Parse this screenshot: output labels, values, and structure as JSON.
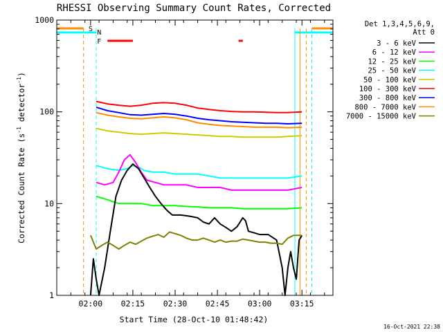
{
  "chart_data": {
    "type": "line",
    "title": "RHESSI Observing Summary Count Rates, Corrected",
    "xlabel": "Start Time (28-Oct-10 01:48:42)",
    "ylabel_main": "Corrected Count Rate (s",
    "ylabel_sup1": "-1",
    "ylabel_mid": " detector",
    "ylabel_sup2": "-1",
    "ylabel_end": ")",
    "footer": "16-Oct-2021 22:38",
    "y_scale": "log",
    "ylim": [
      1,
      1000
    ],
    "xlim_minutes_after_0148": [
      0,
      98
    ],
    "x_ticks": [
      {
        "label": "02:00",
        "minutes": 12
      },
      {
        "label": "02:15",
        "minutes": 27
      },
      {
        "label": "02:30",
        "minutes": 42
      },
      {
        "label": "02:45",
        "minutes": 57
      },
      {
        "label": "03:00",
        "minutes": 72
      },
      {
        "label": "03:15",
        "minutes": 87
      }
    ],
    "y_ticks": [
      {
        "label": "1",
        "value": 1
      },
      {
        "label": "10",
        "value": 10
      },
      {
        "label": "100",
        "value": 100
      },
      {
        "label": "1000",
        "value": 1000
      }
    ],
    "legend": {
      "placement": "right",
      "header1": "Det 1,3,4,5,6,9,",
      "header2": "Att 0",
      "entries": [
        {
          "label": "3 - 6 keV",
          "color": "#000000"
        },
        {
          "label": "6 - 12 keV",
          "color": "#ff00ff"
        },
        {
          "label": "12 - 25 keV",
          "color": "#00ff00"
        },
        {
          "label": "25 - 50 keV",
          "color": "#00ffff"
        },
        {
          "label": "50 - 100 keV",
          "color": "#cccc00"
        },
        {
          "label": "100 - 300 keV",
          "color": "#ff0000"
        },
        {
          "label": "300 - 800 keV",
          "color": "#0000ff"
        },
        {
          "label": "800 - 7000 keV",
          "color": "#ff8c00"
        },
        {
          "label": "7000 - 15000 keV",
          "color": "#808000"
        }
      ]
    },
    "flags": [
      {
        "label": "S",
        "color": "#ff8c00"
      },
      {
        "label": "N",
        "color": "#00ffff"
      },
      {
        "label": "F",
        "color": "#ff0000"
      }
    ],
    "series": [
      {
        "name": "100 - 300 keV",
        "color": "#ff0000",
        "points": [
          [
            14,
            130
          ],
          [
            18,
            122
          ],
          [
            22,
            118
          ],
          [
            26,
            115
          ],
          [
            30,
            118
          ],
          [
            34,
            124
          ],
          [
            38,
            126
          ],
          [
            42,
            124
          ],
          [
            46,
            118
          ],
          [
            50,
            110
          ],
          [
            54,
            106
          ],
          [
            58,
            103
          ],
          [
            62,
            101
          ],
          [
            66,
            100
          ],
          [
            70,
            100
          ],
          [
            74,
            99
          ],
          [
            78,
            98
          ],
          [
            82,
            98
          ],
          [
            87,
            100
          ]
        ]
      },
      {
        "name": "300 - 800 keV",
        "color": "#0000ff",
        "points": [
          [
            14,
            112
          ],
          [
            18,
            103
          ],
          [
            22,
            98
          ],
          [
            26,
            93
          ],
          [
            30,
            92
          ],
          [
            34,
            94
          ],
          [
            38,
            96
          ],
          [
            42,
            94
          ],
          [
            46,
            90
          ],
          [
            50,
            85
          ],
          [
            54,
            82
          ],
          [
            58,
            80
          ],
          [
            62,
            78
          ],
          [
            66,
            77
          ],
          [
            70,
            76
          ],
          [
            74,
            75
          ],
          [
            78,
            75
          ],
          [
            82,
            74
          ],
          [
            87,
            75
          ]
        ]
      },
      {
        "name": "800 - 7000 keV",
        "color": "#ff8c00",
        "points": [
          [
            14,
            98
          ],
          [
            18,
            92
          ],
          [
            22,
            88
          ],
          [
            26,
            85
          ],
          [
            30,
            84
          ],
          [
            34,
            86
          ],
          [
            38,
            88
          ],
          [
            42,
            86
          ],
          [
            46,
            82
          ],
          [
            50,
            76
          ],
          [
            54,
            73
          ],
          [
            58,
            71
          ],
          [
            62,
            70
          ],
          [
            66,
            69
          ],
          [
            70,
            68
          ],
          [
            74,
            68
          ],
          [
            78,
            68
          ],
          [
            82,
            67
          ],
          [
            87,
            68
          ]
        ]
      },
      {
        "name": "50 - 100 keV",
        "color": "#cccc00",
        "points": [
          [
            14,
            66
          ],
          [
            18,
            62
          ],
          [
            22,
            60
          ],
          [
            26,
            58
          ],
          [
            30,
            57
          ],
          [
            34,
            58
          ],
          [
            38,
            59
          ],
          [
            42,
            58
          ],
          [
            46,
            57
          ],
          [
            50,
            56
          ],
          [
            54,
            55
          ],
          [
            58,
            54
          ],
          [
            62,
            54
          ],
          [
            66,
            53
          ],
          [
            70,
            53
          ],
          [
            74,
            53
          ],
          [
            78,
            53
          ],
          [
            82,
            54
          ],
          [
            87,
            55
          ]
        ]
      },
      {
        "name": "25 - 50 keV",
        "color": "#00ffff",
        "points": [
          [
            14,
            26
          ],
          [
            18,
            24
          ],
          [
            22,
            23
          ],
          [
            25,
            24
          ],
          [
            27,
            26
          ],
          [
            29,
            25
          ],
          [
            31,
            23
          ],
          [
            34,
            22
          ],
          [
            38,
            22
          ],
          [
            42,
            21
          ],
          [
            46,
            21
          ],
          [
            50,
            21
          ],
          [
            54,
            20
          ],
          [
            58,
            19
          ],
          [
            62,
            19
          ],
          [
            66,
            19
          ],
          [
            70,
            19
          ],
          [
            74,
            19
          ],
          [
            78,
            19
          ],
          [
            82,
            19
          ],
          [
            87,
            20
          ]
        ]
      },
      {
        "name": "6 - 12 keV",
        "color": "#ff00ff",
        "points": [
          [
            14,
            17
          ],
          [
            17,
            16
          ],
          [
            20,
            17
          ],
          [
            22,
            22
          ],
          [
            24,
            30
          ],
          [
            26,
            34
          ],
          [
            28,
            28
          ],
          [
            30,
            22
          ],
          [
            32,
            18
          ],
          [
            35,
            17
          ],
          [
            38,
            16
          ],
          [
            42,
            16
          ],
          [
            46,
            16
          ],
          [
            50,
            15
          ],
          [
            54,
            15
          ],
          [
            58,
            15
          ],
          [
            62,
            14
          ],
          [
            66,
            14
          ],
          [
            70,
            14
          ],
          [
            74,
            14
          ],
          [
            78,
            14
          ],
          [
            82,
            14
          ],
          [
            87,
            15
          ]
        ]
      },
      {
        "name": "12 - 25 keV",
        "color": "#00ff00",
        "points": [
          [
            14,
            12
          ],
          [
            18,
            11
          ],
          [
            22,
            10
          ],
          [
            26,
            10
          ],
          [
            30,
            10
          ],
          [
            34,
            9.5
          ],
          [
            38,
            9.5
          ],
          [
            42,
            9.5
          ],
          [
            46,
            9.3
          ],
          [
            50,
            9.2
          ],
          [
            54,
            9.0
          ],
          [
            58,
            9.0
          ],
          [
            62,
            9.0
          ],
          [
            66,
            8.8
          ],
          [
            70,
            8.8
          ],
          [
            74,
            8.8
          ],
          [
            78,
            8.8
          ],
          [
            82,
            8.8
          ],
          [
            87,
            9.0
          ]
        ]
      },
      {
        "name": "3 - 6 keV",
        "color": "#000000",
        "points": [
          [
            12,
            1.0
          ],
          [
            13,
            2.5
          ],
          [
            14,
            1.5
          ],
          [
            15,
            1.0
          ],
          [
            17,
            2.0
          ],
          [
            19,
            5.0
          ],
          [
            21,
            12
          ],
          [
            23,
            18
          ],
          [
            25,
            23
          ],
          [
            27,
            27
          ],
          [
            29,
            24
          ],
          [
            31,
            19
          ],
          [
            33,
            15
          ],
          [
            35,
            12
          ],
          [
            37,
            10
          ],
          [
            39,
            8.5
          ],
          [
            41,
            7.5
          ],
          [
            44,
            7.5
          ],
          [
            47,
            7.3
          ],
          [
            50,
            7.0
          ],
          [
            52,
            6.3
          ],
          [
            54,
            6.0
          ],
          [
            56,
            7.0
          ],
          [
            58,
            6.0
          ],
          [
            60,
            5.5
          ],
          [
            62,
            5.0
          ],
          [
            64,
            5.6
          ],
          [
            66,
            7.0
          ],
          [
            67,
            6.5
          ],
          [
            68,
            5.0
          ],
          [
            70,
            4.8
          ],
          [
            72,
            4.6
          ],
          [
            75,
            4.6
          ],
          [
            78,
            4.0
          ],
          [
            80,
            2.0
          ],
          [
            81,
            1.0
          ],
          [
            82,
            2.0
          ],
          [
            83,
            3.0
          ],
          [
            84,
            2.0
          ],
          [
            85,
            1.5
          ],
          [
            86,
            4.0
          ],
          [
            87,
            4.5
          ]
        ]
      },
      {
        "name": "7000 - 15000 keV",
        "color": "#808000",
        "points": [
          [
            12,
            4.5
          ],
          [
            14,
            3.2
          ],
          [
            16,
            3.5
          ],
          [
            18,
            3.8
          ],
          [
            20,
            3.5
          ],
          [
            22,
            3.2
          ],
          [
            24,
            3.5
          ],
          [
            26,
            3.8
          ],
          [
            28,
            3.6
          ],
          [
            30,
            3.9
          ],
          [
            32,
            4.2
          ],
          [
            34,
            4.4
          ],
          [
            36,
            4.6
          ],
          [
            38,
            4.3
          ],
          [
            40,
            4.9
          ],
          [
            42,
            4.7
          ],
          [
            44,
            4.5
          ],
          [
            46,
            4.2
          ],
          [
            48,
            4.0
          ],
          [
            50,
            4.0
          ],
          [
            52,
            4.2
          ],
          [
            54,
            4.0
          ],
          [
            56,
            3.8
          ],
          [
            58,
            4.0
          ],
          [
            60,
            3.8
          ],
          [
            62,
            3.9
          ],
          [
            64,
            3.9
          ],
          [
            66,
            4.1
          ],
          [
            68,
            4.0
          ],
          [
            70,
            3.9
          ],
          [
            72,
            3.8
          ],
          [
            74,
            3.8
          ],
          [
            76,
            3.7
          ],
          [
            78,
            3.7
          ],
          [
            80,
            3.6
          ],
          [
            82,
            4.2
          ],
          [
            84,
            4.5
          ],
          [
            87,
            4.5
          ]
        ]
      }
    ]
  }
}
